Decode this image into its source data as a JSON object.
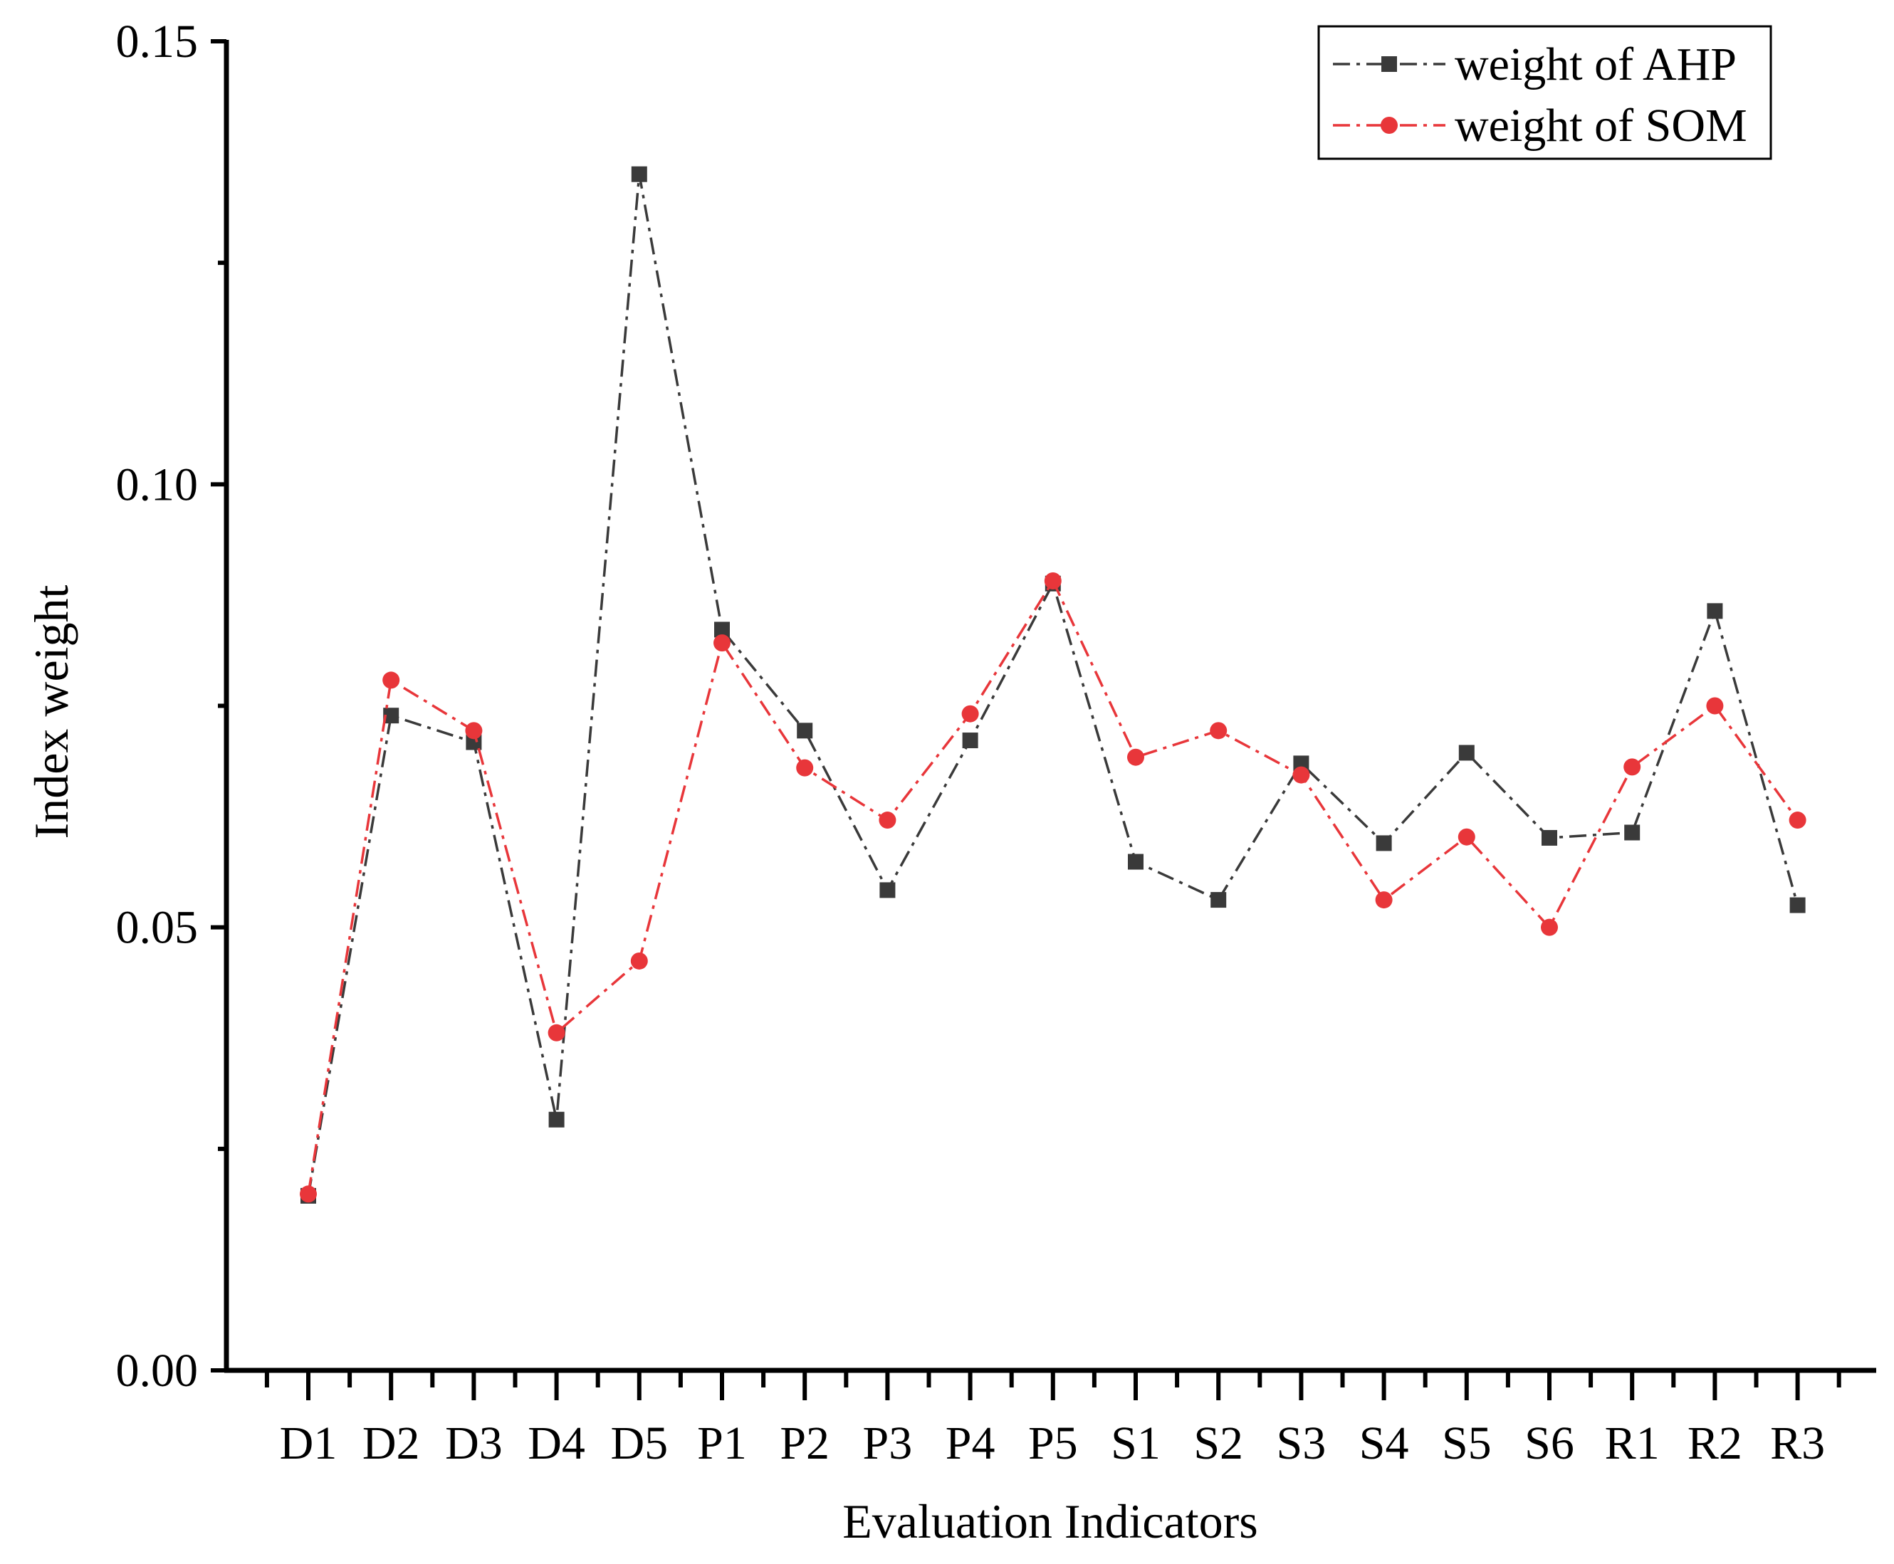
{
  "chart_data": {
    "type": "line",
    "title": "",
    "xlabel": "Evaluation Indicators",
    "ylabel": "Index weight",
    "categories": [
      "D1",
      "D2",
      "D3",
      "D4",
      "D5",
      "P1",
      "P2",
      "P3",
      "P4",
      "P5",
      "S1",
      "S2",
      "S3",
      "S4",
      "S5",
      "S6",
      "R1",
      "R2",
      "R3"
    ],
    "ylim": [
      0,
      0.15
    ],
    "yticks": [
      "0.00",
      "0.05",
      "0.10",
      "0.15"
    ],
    "ytick_values": [
      0,
      0.05,
      0.1,
      0.15
    ],
    "legend_position": "top-right",
    "series": [
      {
        "name": "weight of AHP",
        "color": "#3a3a3a",
        "marker": "square",
        "values": [
          0.0197,
          0.0739,
          0.0709,
          0.0283,
          0.135,
          0.0836,
          0.0722,
          0.0542,
          0.0711,
          0.0888,
          0.0574,
          0.0531,
          0.0685,
          0.0595,
          0.0697,
          0.0601,
          0.0607,
          0.0857,
          0.0525
        ]
      },
      {
        "name": "weight of SOM",
        "color": "#e8363a",
        "marker": "circle",
        "values": [
          0.0199,
          0.0779,
          0.0722,
          0.0381,
          0.0462,
          0.0821,
          0.068,
          0.0621,
          0.0741,
          0.0891,
          0.0692,
          0.0722,
          0.0672,
          0.0531,
          0.0602,
          0.05,
          0.0681,
          0.075,
          0.0621
        ]
      }
    ]
  }
}
